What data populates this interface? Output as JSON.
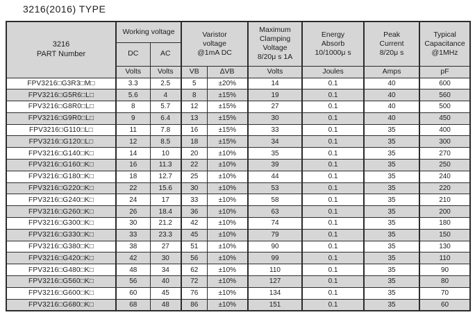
{
  "title": "3216(2016) TYPE",
  "colors": {
    "header_bg": "#d6d6d6",
    "row_alt_bg": "#d6d6d6",
    "row_bg": "#ffffff",
    "border": "#2b2b2b",
    "text": "#1c1c1c"
  },
  "table": {
    "part_header": "3216\nPART Number",
    "groups": {
      "working_voltage": "Working voltage",
      "varistor_voltage": "Varistor\nvoltage\n@1mA DC",
      "max_clamping": "Maximum\nClamping\nVoltage\n8/20μ s 1A",
      "energy_absorb": "Energy\nAbsorb\n10/1000μ s",
      "peak_current": "Peak\nCurrent\n8/20μ s",
      "typical_capacitance": "Typical\nCapacitance\n@1MHz"
    },
    "sub_headers": {
      "dc": "DC",
      "ac": "AC"
    },
    "units": [
      "Volts",
      "Volts",
      "VB",
      "∆VB",
      "Volts",
      "Joules",
      "Amps",
      "pF"
    ],
    "rows": [
      [
        "FPV3216□G3R3□M□",
        "3.3",
        "2.5",
        "5",
        "±20%",
        "14",
        "0.1",
        "40",
        "600"
      ],
      [
        "FPV3216□G5R6□L□",
        "5.6",
        "4",
        "8",
        "±15%",
        "19",
        "0.1",
        "40",
        "560"
      ],
      [
        "FPV3216□G8R0□L□",
        "8",
        "5.7",
        "12",
        "±15%",
        "27",
        "0.1",
        "40",
        "500"
      ],
      [
        "FPV3216□G9R0□L□",
        "9",
        "6.4",
        "13",
        "±15%",
        "30",
        "0.1",
        "40",
        "450"
      ],
      [
        "FPV3216□G110□L□",
        "11",
        "7.8",
        "16",
        "±15%",
        "33",
        "0.1",
        "35",
        "400"
      ],
      [
        "FPV3216□G120□L□",
        "12",
        "8.5",
        "18",
        "±15%",
        "34",
        "0.1",
        "35",
        "300"
      ],
      [
        "FPV3216□G140□K□",
        "14",
        "10",
        "20",
        "±10%",
        "35",
        "0.1",
        "35",
        "270"
      ],
      [
        "FPV3216□G160□K□",
        "16",
        "11.3",
        "22",
        "±10%",
        "39",
        "0.1",
        "35",
        "250"
      ],
      [
        "FPV3216□G180□K□",
        "18",
        "12.7",
        "25",
        "±10%",
        "44",
        "0.1",
        "35",
        "240"
      ],
      [
        "FPV3216□G220□K□",
        "22",
        "15.6",
        "30",
        "±10%",
        "53",
        "0.1",
        "35",
        "220"
      ],
      [
        "FPV3216□G240□K□",
        "24",
        "17",
        "33",
        "±10%",
        "58",
        "0.1",
        "35",
        "210"
      ],
      [
        "FPV3216□G260□K□",
        "26",
        "18.4",
        "36",
        "±10%",
        "63",
        "0.1",
        "35",
        "200"
      ],
      [
        "FPV3216□G300□K□",
        "30",
        "21.2",
        "42",
        "±10%",
        "74",
        "0.1",
        "35",
        "180"
      ],
      [
        "FPV3216□G330□K□",
        "33",
        "23.3",
        "45",
        "±10%",
        "79",
        "0.1",
        "35",
        "150"
      ],
      [
        "FPV3216□G380□K□",
        "38",
        "27",
        "51",
        "±10%",
        "90",
        "0.1",
        "35",
        "130"
      ],
      [
        "FPV3216□G420□K□",
        "42",
        "30",
        "56",
        "±10%",
        "99",
        "0.1",
        "35",
        "110"
      ],
      [
        "FPV3216□G480□K□",
        "48",
        "34",
        "62",
        "±10%",
        "110",
        "0.1",
        "35",
        "90"
      ],
      [
        "FPV3216□G560□K□",
        "56",
        "40",
        "72",
        "±10%",
        "127",
        "0.1",
        "35",
        "80"
      ],
      [
        "FPV3216□G600□K□",
        "60",
        "45",
        "76",
        "±10%",
        "134",
        "0.1",
        "35",
        "70"
      ],
      [
        "FPV3216□G680□K□",
        "68",
        "48",
        "86",
        "±10%",
        "151",
        "0.1",
        "35",
        "60"
      ]
    ]
  }
}
